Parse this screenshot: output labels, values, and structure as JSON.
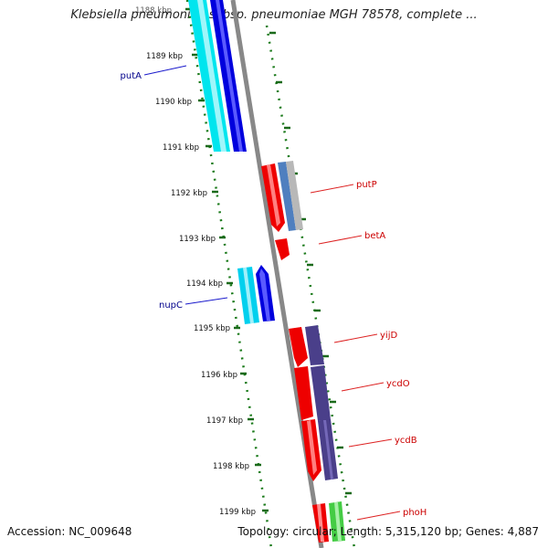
{
  "title": "Klebsiella pneumoniae subsp. pneumoniae MGH 78578, complete ...",
  "accession": "Accession: NC_009648",
  "footer": "Topology: circular; Length: 5,315,120 bp; Genes: 4,887",
  "colors": {
    "backbone": "#888888",
    "tick_dots": "#1a7a1a",
    "minus_cyan": "#00e5ee",
    "minus_blue": "#0000dd",
    "plus_red": "#ee0000",
    "purple": "#4a3f8a",
    "steelblue": "#4f7fbf",
    "gray": "#b8b8b8",
    "green": "#44cc44",
    "minus_label": "#00008b",
    "plus_label": "#cc0000"
  },
  "kbp_labels": [
    "1188 kbp",
    "1189 kbp",
    "1190 kbp",
    "1191 kbp",
    "1192 kbp",
    "1193 kbp",
    "1194 kbp",
    "1195 kbp",
    "1196 kbp",
    "1197 kbp",
    "1198 kbp",
    "1199 kbp"
  ],
  "gene_labels": {
    "putA": "putA",
    "nupC": "nupC",
    "putP": "putP",
    "betA": "betA",
    "yijD": "yijD",
    "ycdO": "ycdO",
    "ycdB": "ycdB",
    "phoH": "phoH"
  }
}
